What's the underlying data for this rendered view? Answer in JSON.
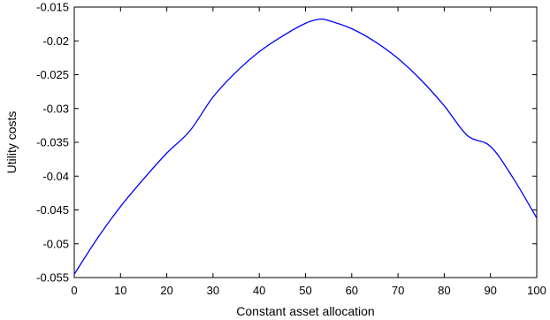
{
  "chart_data": {
    "type": "line",
    "xlabel": "Constant asset allocation",
    "ylabel": "Utility costs",
    "xlim": [
      0,
      100
    ],
    "ylim": [
      -0.055,
      -0.015
    ],
    "xticks": [
      "0",
      "10",
      "20",
      "30",
      "40",
      "50",
      "60",
      "70",
      "80",
      "90",
      "100"
    ],
    "yticks": [
      "-0.015",
      "-0.02",
      "-0.025",
      "-0.03",
      "-0.035",
      "-0.04",
      "-0.045",
      "-0.05",
      "-0.055"
    ],
    "grid": false,
    "series": [
      {
        "color": "#0000ff",
        "x": [
          0,
          5,
          10,
          15,
          20,
          25,
          30,
          35,
          40,
          45,
          50,
          53,
          55,
          60,
          65,
          70,
          75,
          80,
          85,
          90,
          95,
          100
        ],
        "y": [
          -0.0545,
          -0.0492,
          -0.0445,
          -0.0404,
          -0.0366,
          -0.0333,
          -0.0283,
          -0.0246,
          -0.0216,
          -0.0193,
          -0.0174,
          -0.0168,
          -0.017,
          -0.0182,
          -0.0201,
          -0.0226,
          -0.0258,
          -0.0296,
          -0.034,
          -0.0356,
          -0.0404,
          -0.0462
        ]
      }
    ]
  }
}
